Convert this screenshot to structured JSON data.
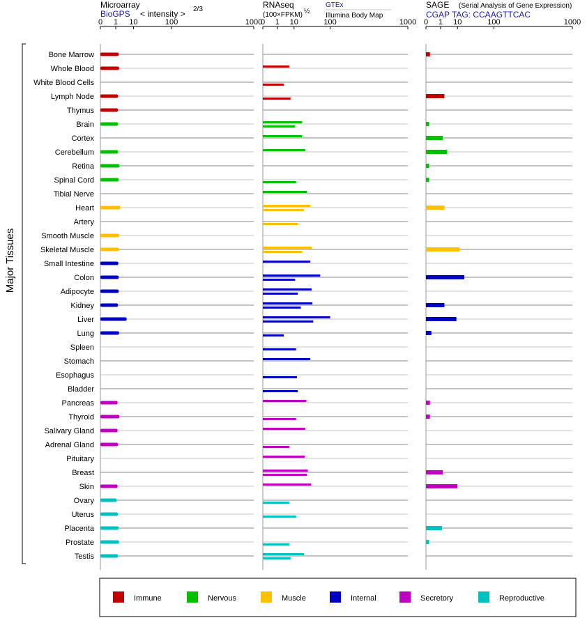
{
  "chart_data": {
    "type": "bar",
    "y_axis_label": "Major Tissues",
    "tick_labels": [
      "0",
      "1",
      "10",
      "100",
      "1000"
    ],
    "scale_note": "< intensity >",
    "scale_exponent": "2/3",
    "categories": [
      "Bone Marrow",
      "Whole Blood",
      "White Blood Cells",
      "Lymph Node",
      "Thymus",
      "Brain",
      "Cortex",
      "Cerebellum",
      "Retina",
      "Spinal Cord",
      "Tibial Nerve",
      "Heart",
      "Artery",
      "Smooth Muscle",
      "Skeletal Muscle",
      "Small Intestine",
      "Colon",
      "Adipocyte",
      "Kidney",
      "Liver",
      "Lung",
      "Spleen",
      "Stomach",
      "Esophagus",
      "Bladder",
      "Pancreas",
      "Thyroid",
      "Salivary Gland",
      "Adrenal Gland",
      "Pituitary",
      "Breast",
      "Skin",
      "Ovary",
      "Uterus",
      "Placenta",
      "Prostate",
      "Testis"
    ],
    "groups": [
      "Immune",
      "Immune",
      "Immune",
      "Immune",
      "Immune",
      "Nervous",
      "Nervous",
      "Nervous",
      "Nervous",
      "Nervous",
      "Nervous",
      "Muscle",
      "Muscle",
      "Muscle",
      "Muscle",
      "Internal",
      "Internal",
      "Internal",
      "Internal",
      "Internal",
      "Internal",
      "Internal",
      "Internal",
      "Internal",
      "Internal",
      "Secretory",
      "Secretory",
      "Secretory",
      "Secretory",
      "Secretory",
      "Secretory",
      "Secretory",
      "Reproductive",
      "Reproductive",
      "Reproductive",
      "Reproductive",
      "Reproductive"
    ],
    "legend": [
      {
        "name": "Immune",
        "color": "#c00000"
      },
      {
        "name": "Nervous",
        "color": "#00c000"
      },
      {
        "name": "Muscle",
        "color": "#ffc000"
      },
      {
        "name": "Internal",
        "color": "#0000c0"
      },
      {
        "name": "Secretory",
        "color": "#c000c0"
      },
      {
        "name": "Reproductive",
        "color": "#00c0c0"
      }
    ],
    "panels": [
      {
        "title": "Microarray",
        "subtitle": "BioGPS",
        "source_a": "",
        "source_b": "",
        "axis_range": [
          0,
          1000
        ],
        "series": [
          {
            "values": [
              1.7,
              1.8,
              null,
              1.5,
              1.5,
              1.5,
              null,
              1.5,
              1.9,
              1.7,
              null,
              2.2,
              null,
              1.8,
              1.8,
              1.6,
              1.7,
              1.7,
              1.5,
              5.0,
              1.8,
              null,
              null,
              null,
              null,
              1.4,
              1.9,
              1.4,
              1.5,
              null,
              null,
              1.4,
              1.2,
              1.5,
              1.7,
              1.8,
              1.5
            ]
          }
        ]
      },
      {
        "title": "RNAseq",
        "subtitle": "(100×FPKM)",
        "subtitle_exponent": "½",
        "source_a": "GTEx",
        "source_b": "Illumina Body Map",
        "axis_range": [
          0,
          1000
        ],
        "series": [
          {
            "name": "GTEx",
            "values": [
              null,
              6,
              null,
              null,
              null,
              20,
              20,
              25,
              null,
              null,
              28,
              35,
              null,
              null,
              38,
              35,
              62,
              38,
              40,
              100,
              null,
              null,
              35,
              null,
              null,
              27,
              null,
              25,
              null,
              24,
              30,
              37,
              null,
              null,
              null,
              null,
              23
            ]
          },
          {
            "name": "Illumina Body Map",
            "values": [
              null,
              null,
              3,
              7,
              null,
              11,
              null,
              null,
              null,
              12,
              null,
              23,
              14,
              null,
              20,
              null,
              11,
              14,
              18,
              42,
              3,
              12,
              null,
              13,
              14,
              null,
              12,
              null,
              6,
              null,
              28,
              null,
              6,
              12,
              null,
              6,
              7
            ]
          }
        ]
      },
      {
        "title": "SAGE",
        "title_note": "(Serial Analysis of Gene Expression)",
        "subtitle": "CGAP TAG: CCAAGTTCAC",
        "source_a": "",
        "source_b": "",
        "axis_range": [
          0,
          1000
        ],
        "series": [
          {
            "values": [
              0.02,
              null,
              null,
              2.0,
              null,
              0.01,
              1.5,
              3.0,
              0.01,
              0.01,
              null,
              2.0,
              null,
              null,
              12,
              null,
              18,
              null,
              2.0,
              9,
              0.05,
              null,
              null,
              null,
              null,
              0.02,
              0.02,
              null,
              null,
              null,
              1.5,
              10,
              null,
              null,
              1.3,
              0.01,
              null
            ]
          }
        ]
      }
    ]
  }
}
